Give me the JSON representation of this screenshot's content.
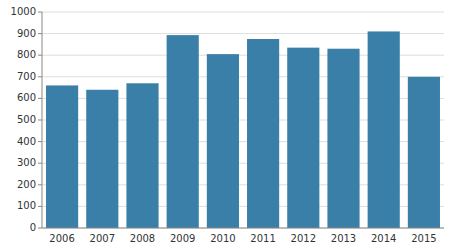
{
  "chart_data": {
    "type": "bar",
    "categories": [
      "2006",
      "2007",
      "2008",
      "2009",
      "2010",
      "2011",
      "2012",
      "2013",
      "2014",
      "2015"
    ],
    "values": [
      660,
      640,
      670,
      893,
      805,
      875,
      835,
      830,
      910,
      700
    ],
    "color": "#3a7fa8",
    "ylim": [
      0,
      1000
    ],
    "yticks": [
      0,
      100,
      200,
      300,
      400,
      500,
      600,
      700,
      800,
      900,
      1000
    ],
    "grid": true
  }
}
